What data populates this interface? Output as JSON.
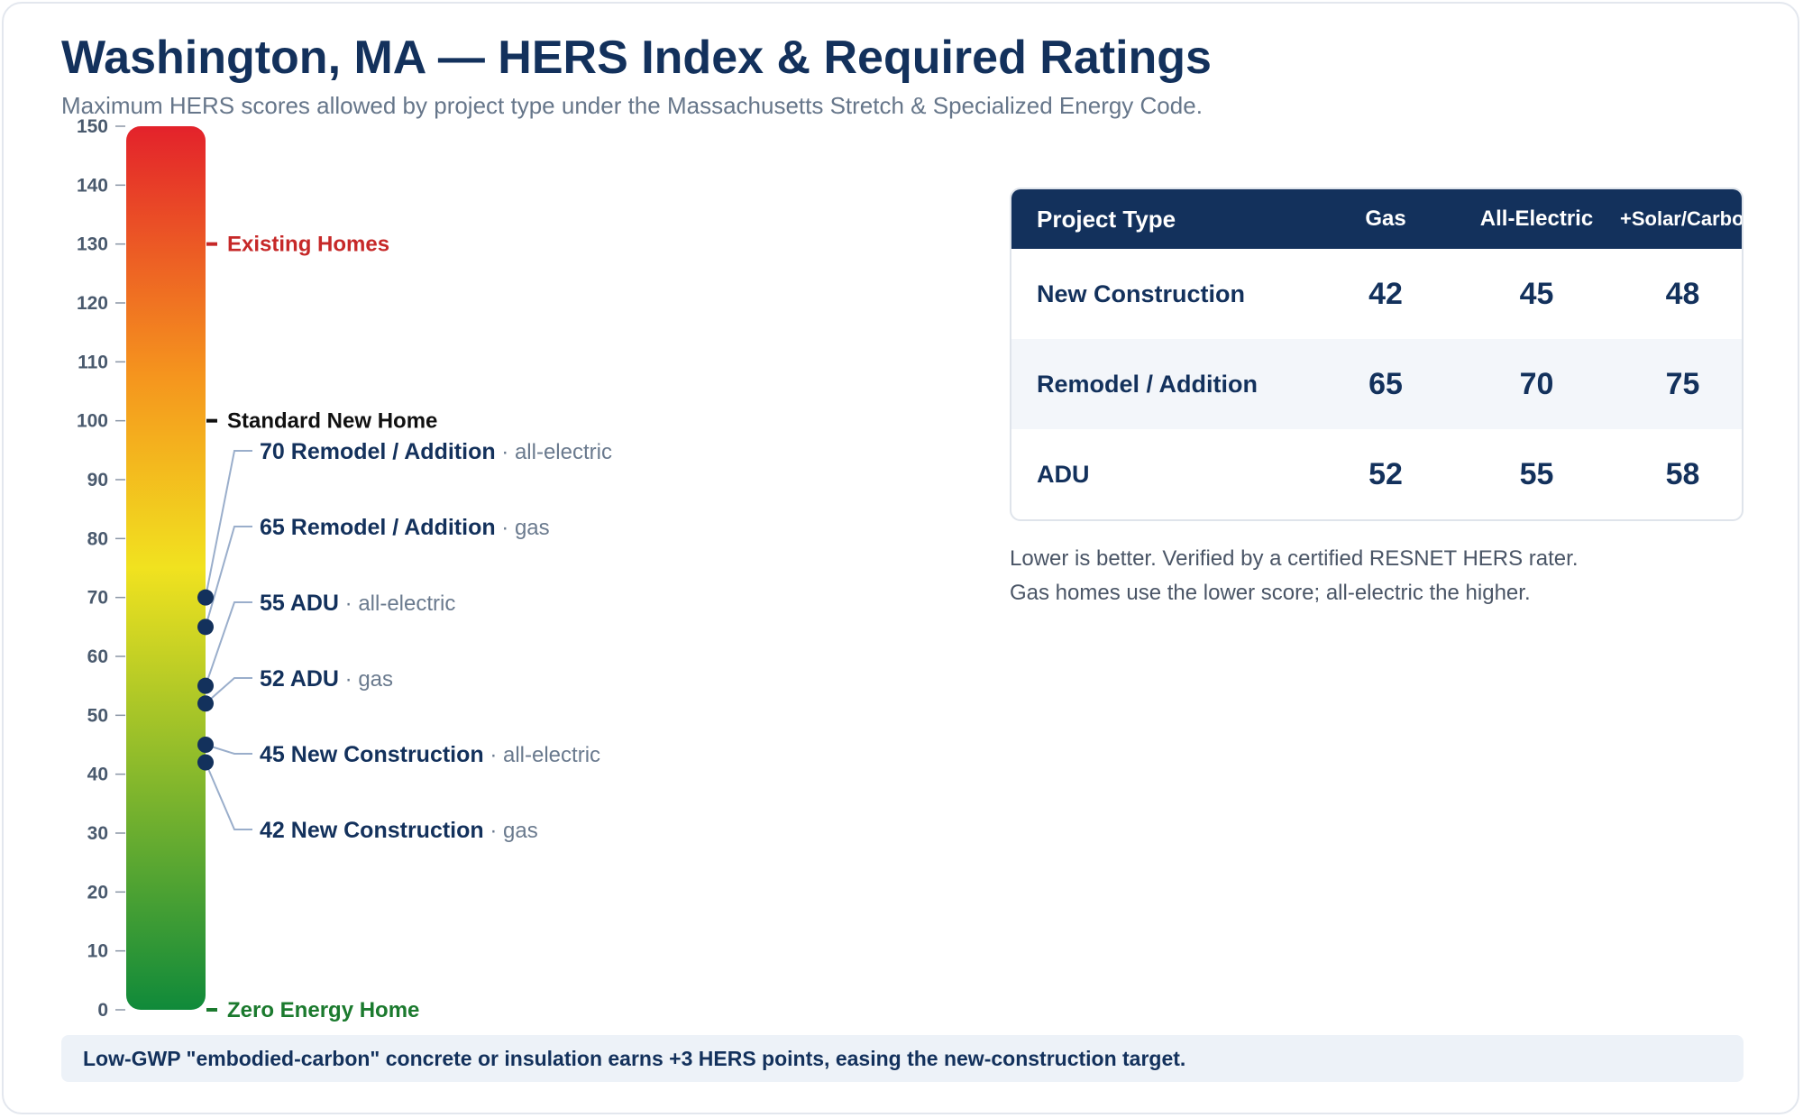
{
  "title": "Washington, MA — HERS Index & Required Ratings",
  "subtitle": "Maximum HERS scores allowed by project type under the Massachusetts Stretch & Specialized Energy Code.",
  "colors": {
    "navy": "#13315c",
    "gradient_top": "#e3222b",
    "gradient_mid_orange": "#f5941e",
    "gradient_mid_yellow": "#f1e21f",
    "gradient_bottom": "#108a3a",
    "existing": "#c62828",
    "standard": "#111111",
    "zero": "#1b7a2e",
    "leader": "#9aaecb"
  },
  "chart_data": {
    "type": "gauge",
    "axis": {
      "min": 0,
      "max": 150,
      "ticks": [
        0,
        10,
        20,
        30,
        40,
        50,
        60,
        70,
        80,
        90,
        100,
        110,
        120,
        130,
        140,
        150
      ]
    },
    "reference_lines": [
      {
        "value": 130,
        "label": "Existing Homes",
        "color": "#c62828"
      },
      {
        "value": 100,
        "label": "Standard New Home",
        "color": "#111111"
      },
      {
        "value": 0,
        "label": "Zero Energy Home",
        "color": "#1b7a2e"
      }
    ],
    "markers": [
      {
        "value": 70,
        "name": "Remodel / Addition",
        "fuel": "all-electric"
      },
      {
        "value": 65,
        "name": "Remodel / Addition",
        "fuel": "gas"
      },
      {
        "value": 55,
        "name": "ADU",
        "fuel": "all-electric"
      },
      {
        "value": 52,
        "name": "ADU",
        "fuel": "gas"
      },
      {
        "value": 45,
        "name": "New Construction",
        "fuel": "all-electric"
      },
      {
        "value": 42,
        "name": "New Construction",
        "fuel": "gas"
      }
    ]
  },
  "table": {
    "headers": [
      "Project Type",
      "Gas",
      "All-Electric",
      "+Solar/Carbon"
    ],
    "rows": [
      [
        "New Construction",
        "42",
        "45",
        "48"
      ],
      [
        "Remodel / Addition",
        "65",
        "70",
        "75"
      ],
      [
        "ADU",
        "52",
        "55",
        "58"
      ]
    ]
  },
  "notes": [
    "Lower is better. Verified by a certified RESNET HERS rater.",
    "Gas homes use the lower score; all-electric the higher."
  ],
  "footer": "Low-GWP \"embodied-carbon\" concrete or insulation earns +3 HERS points, easing the new-construction target."
}
